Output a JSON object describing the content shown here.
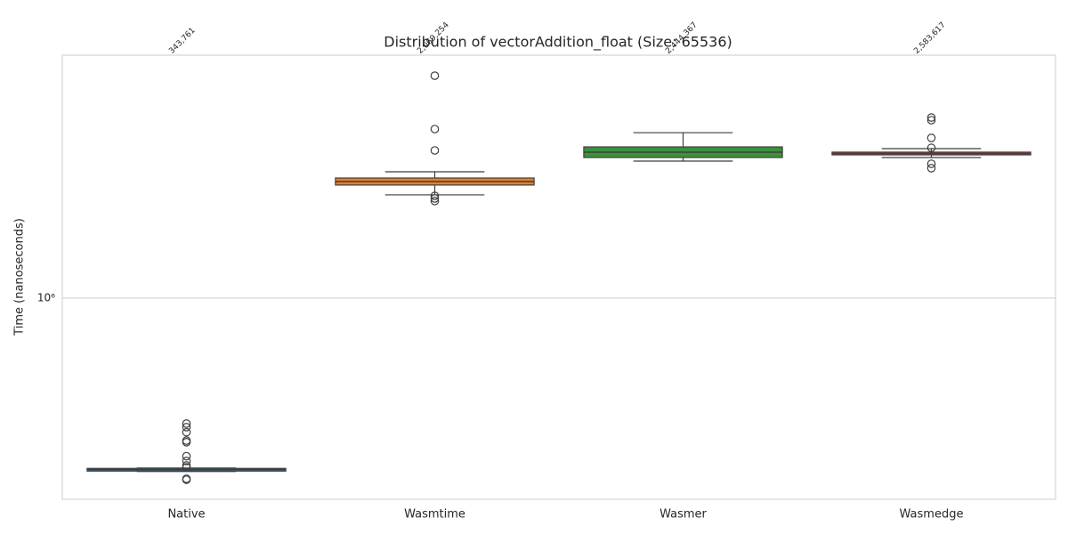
{
  "chart_data": {
    "type": "box",
    "title": "Distribution of vectorAddition_float (Size: 65536)",
    "y_label": "Time (nanoseconds)",
    "log_y": true,
    "grid": true,
    "ylim": [
      285000,
      4550000
    ],
    "yticks": [
      {
        "value": 1000000,
        "label": "10⁶"
      }
    ],
    "categories": [
      "Native",
      "Wasmtime",
      "Wasmer",
      "Wasmedge"
    ],
    "boxes": [
      {
        "color": "#3274a1",
        "whislo": 339000,
        "q1": 339800,
        "median": 343000,
        "q3": 345600,
        "whishi": 346500,
        "fliers": [
          457000,
          447000,
          433000,
          411000,
          407000,
          373000,
          362000,
          352000,
          348000,
          324000,
          322000
        ]
      },
      {
        "color": "#e1812c",
        "whislo": 1904000,
        "q1": 2024000,
        "median": 2069000,
        "q3": 2115000,
        "whishi": 2199000,
        "fliers": [
          4003000,
          2870000,
          2512000,
          1892000,
          1862000,
          1832000
        ]
      },
      {
        "color": "#3a923a",
        "whislo": 2350000,
        "q1": 2403000,
        "median": 2485000,
        "q3": 2568000,
        "whishi": 2806000,
        "fliers": []
      },
      {
        "color": "#c03d3e",
        "whislo": 2403000,
        "q1": 2443000,
        "median": 2464000,
        "q3": 2485000,
        "whishi": 2540000,
        "fliers": [
          3084000,
          3034000,
          2716000,
          2553000,
          2311000,
          2249000
        ]
      }
    ],
    "annotations": [
      {
        "value": 343761,
        "label": "343,761"
      },
      {
        "value": 2069254,
        "label": "2,069,254"
      },
      {
        "value": 2444367,
        "label": "2,444,367"
      },
      {
        "value": 2583617,
        "label": "2,583,617"
      }
    ]
  }
}
